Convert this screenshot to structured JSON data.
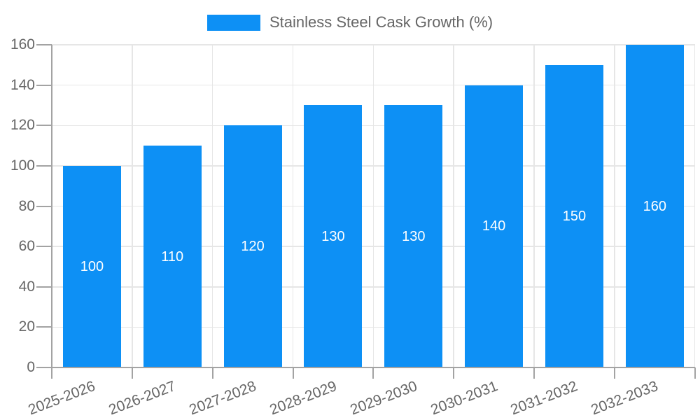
{
  "chart_data": {
    "type": "bar",
    "title": "Stainless Steel Cask Growth (%)",
    "categories": [
      "2025-2026",
      "2026-2027",
      "2027-2028",
      "2028-2029",
      "2029-2030",
      "2030-2031",
      "2031-2032",
      "2032-2033"
    ],
    "series": [
      {
        "name": "Stainless Steel Cask Growth (%)",
        "values": [
          100,
          110,
          120,
          130,
          130,
          140,
          150,
          160
        ]
      }
    ],
    "ylim": [
      0,
      160
    ],
    "yticks": [
      0,
      20,
      40,
      60,
      80,
      100,
      120,
      140,
      160
    ],
    "xlabel": "",
    "ylabel": "",
    "grid": "horizontal and vertical, light gray",
    "legend_position": "top-center",
    "value_label_position": "inside-center",
    "x_tick_label_rotation_deg": -21,
    "colors": {
      "bar": "#0D90F5",
      "value_label": "#FFFFFF",
      "axis": "#A3A3A3",
      "grid": "#E6E6E6",
      "tick_label": "#666666",
      "legend_text": "#666666",
      "background": "#FFFFFF"
    }
  }
}
